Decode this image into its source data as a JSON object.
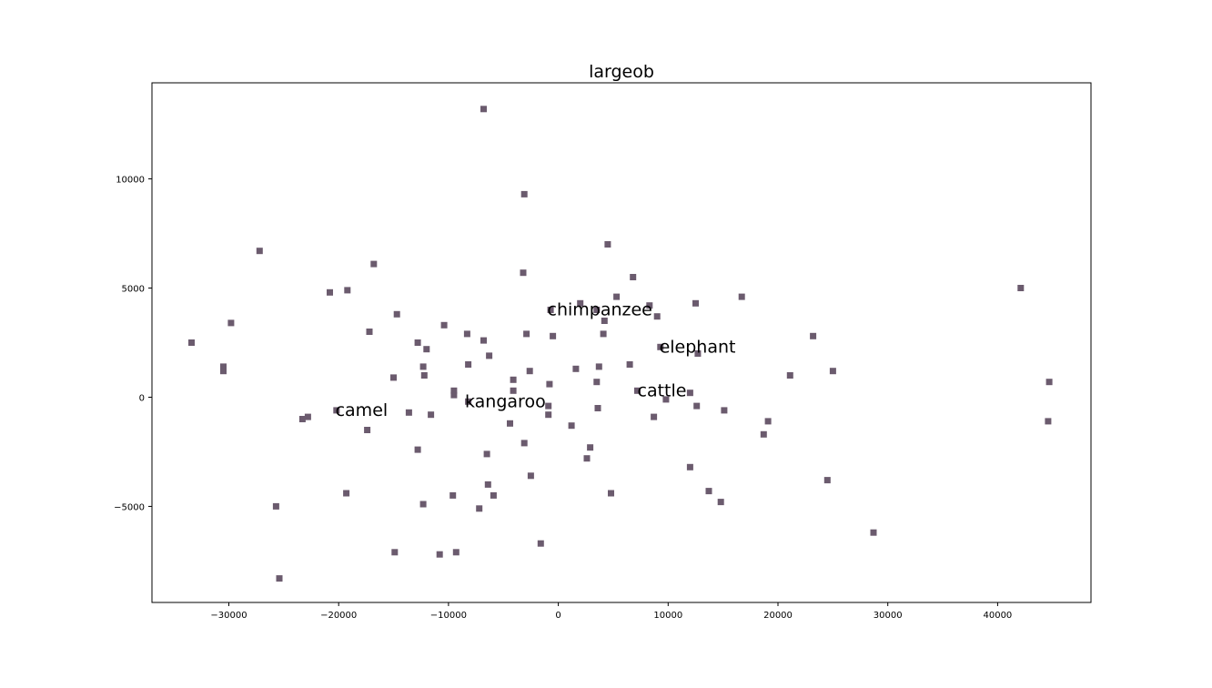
{
  "chart_data": {
    "type": "scatter",
    "title": "largeob",
    "xlabel": "",
    "ylabel": "",
    "xlim": [
      -37000,
      48500
    ],
    "ylim": [
      -9400,
      14400
    ],
    "xticks": [
      -30000,
      -20000,
      -10000,
      0,
      10000,
      20000,
      30000,
      40000
    ],
    "xtick_labels": [
      "−30000",
      "−20000",
      "−10000",
      "0",
      "10000",
      "20000",
      "30000",
      "40000"
    ],
    "yticks": [
      -5000,
      0,
      5000,
      10000
    ],
    "ytick_labels": [
      "−5000",
      "0",
      "5000",
      "10000"
    ],
    "grid": false,
    "marker": "square",
    "marker_color": "#6b5b6e",
    "points": [
      [
        -6800,
        13200
      ],
      [
        -3100,
        9300
      ],
      [
        4500,
        7000
      ],
      [
        -27200,
        6700
      ],
      [
        -16800,
        6100
      ],
      [
        6800,
        5500
      ],
      [
        -3200,
        5700
      ],
      [
        -20800,
        4800
      ],
      [
        -19200,
        4900
      ],
      [
        5300,
        4600
      ],
      [
        16700,
        4600
      ],
      [
        12500,
        4300
      ],
      [
        2000,
        4300
      ],
      [
        3500,
        4000
      ],
      [
        -700,
        4000
      ],
      [
        8300,
        4200
      ],
      [
        -14700,
        3800
      ],
      [
        9000,
        3700
      ],
      [
        4200,
        3500
      ],
      [
        -29800,
        3400
      ],
      [
        -10400,
        3300
      ],
      [
        -17200,
        3000
      ],
      [
        -2900,
        2900
      ],
      [
        -500,
        2800
      ],
      [
        4100,
        2900
      ],
      [
        -8300,
        2900
      ],
      [
        23200,
        2800
      ],
      [
        -6800,
        2600
      ],
      [
        -12800,
        2500
      ],
      [
        -33400,
        2500
      ],
      [
        9300,
        2300
      ],
      [
        -12000,
        2200
      ],
      [
        12700,
        2000
      ],
      [
        -6300,
        1900
      ],
      [
        6500,
        1500
      ],
      [
        -8200,
        1500
      ],
      [
        3700,
        1400
      ],
      [
        -30500,
        1400
      ],
      [
        -12300,
        1400
      ],
      [
        1600,
        1300
      ],
      [
        -30500,
        1200
      ],
      [
        -2600,
        1200
      ],
      [
        25000,
        1200
      ],
      [
        21100,
        1000
      ],
      [
        -12200,
        1000
      ],
      [
        -15000,
        900
      ],
      [
        -4100,
        800
      ],
      [
        44700,
        700
      ],
      [
        3500,
        700
      ],
      [
        -800,
        600
      ],
      [
        7200,
        300
      ],
      [
        12000,
        200
      ],
      [
        -4100,
        300
      ],
      [
        -9500,
        300
      ],
      [
        -9500,
        100
      ],
      [
        9800,
        -100
      ],
      [
        -8200,
        -200
      ],
      [
        -900,
        -400
      ],
      [
        3600,
        -500
      ],
      [
        12600,
        -400
      ],
      [
        15100,
        -600
      ],
      [
        -20200,
        -600
      ],
      [
        -13600,
        -700
      ],
      [
        -11600,
        -800
      ],
      [
        -900,
        -800
      ],
      [
        8700,
        -900
      ],
      [
        -22800,
        -900
      ],
      [
        -23300,
        -1000
      ],
      [
        19100,
        -1100
      ],
      [
        44600,
        -1100
      ],
      [
        -4400,
        -1200
      ],
      [
        1200,
        -1300
      ],
      [
        -17400,
        -1500
      ],
      [
        18700,
        -1700
      ],
      [
        -3100,
        -2100
      ],
      [
        2900,
        -2300
      ],
      [
        -12800,
        -2400
      ],
      [
        -6500,
        -2600
      ],
      [
        2600,
        -2800
      ],
      [
        12000,
        -3200
      ],
      [
        -2500,
        -3600
      ],
      [
        24500,
        -3800
      ],
      [
        -6400,
        -4000
      ],
      [
        13700,
        -4300
      ],
      [
        4800,
        -4400
      ],
      [
        -19300,
        -4400
      ],
      [
        -9600,
        -4500
      ],
      [
        -5900,
        -4500
      ],
      [
        14800,
        -4800
      ],
      [
        -12300,
        -4900
      ],
      [
        -25700,
        -5000
      ],
      [
        -7200,
        -5100
      ],
      [
        28700,
        -6200
      ],
      [
        -1600,
        -6700
      ],
      [
        -14900,
        -7100
      ],
      [
        -9300,
        -7100
      ],
      [
        -10800,
        -7200
      ],
      [
        -25400,
        -8300
      ],
      [
        42100,
        5000
      ]
    ],
    "annotations": [
      {
        "text": "chimpanzee",
        "x": -1000,
        "y": 4000
      },
      {
        "text": "elephant",
        "x": 9200,
        "y": 2300
      },
      {
        "text": "cattle",
        "x": 7200,
        "y": 300
      },
      {
        "text": "kangaroo",
        "x": -8500,
        "y": -200
      },
      {
        "text": "camel",
        "x": -20300,
        "y": -600
      }
    ]
  }
}
